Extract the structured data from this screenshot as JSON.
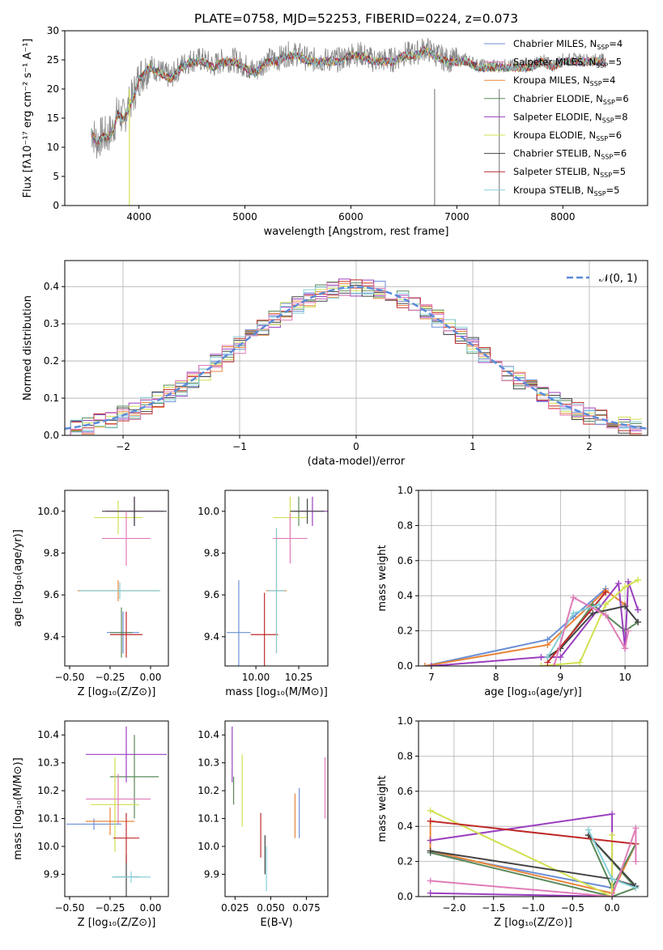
{
  "figure": {
    "title": "PLATE=0758, MJD=52253, FIBERID=0224, z=0.073"
  },
  "colors": [
    "#6a8fd6",
    "#e9853a",
    "#5a8a5a",
    "#9a3fbf",
    "#d2e050",
    "#444444",
    "#c02a2a",
    "#86d0d8",
    "#e07cb8",
    "#888888"
  ],
  "chart_data": [
    {
      "id": "spectrum",
      "type": "line",
      "title": "PLATE=0758, MJD=52253, FIBERID=0224, z=0.073",
      "xlabel": "wavelength [Angstrom, rest frame]",
      "ylabel": "Flux [fλ10⁻¹⁷ erg cm⁻² s⁻¹ A⁻¹]",
      "xlim": [
        3300,
        8800
      ],
      "ylim": [
        0,
        30
      ],
      "xticks": [
        4000,
        5000,
        6000,
        7000,
        8000
      ],
      "yticks": [
        0,
        5,
        10,
        15,
        20,
        25,
        30
      ],
      "grid": false,
      "legend_position": "top-right",
      "legend": [
        {
          "label": "Chabrier MILES, N",
          "sub": "SSP",
          "suffix": "=4",
          "color": "#6a8fd6"
        },
        {
          "label": "Salpeter MILES, N",
          "sub": "SSP",
          "suffix": "=5",
          "color": "#e07cb8"
        },
        {
          "label": "Kroupa MILES, N",
          "sub": "SSP",
          "suffix": "=4",
          "color": "#e9853a"
        },
        {
          "label": "Chabrier ELODIE, N",
          "sub": "SSP",
          "suffix": "=6",
          "color": "#5a8a5a"
        },
        {
          "label": "Salpeter ELODIE, N",
          "sub": "SSP",
          "suffix": "=8",
          "color": "#9a3fbf"
        },
        {
          "label": "Kroupa ELODIE, N",
          "sub": "SSP",
          "suffix": "=6",
          "color": "#d2e050"
        },
        {
          "label": "Chabrier STELIB, N",
          "sub": "SSP",
          "suffix": "=6",
          "color": "#444444"
        },
        {
          "label": "Salpeter STELIB, N",
          "sub": "SSP",
          "suffix": "=5",
          "color": "#c02a2a"
        },
        {
          "label": "Kroupa STELIB, N",
          "sub": "SSP",
          "suffix": "=5",
          "color": "#86d0d8"
        }
      ],
      "data_curve": {
        "name": "",
        "x": [
          3550,
          3600,
          3650,
          3700,
          3750,
          3800,
          3850,
          3900,
          3950,
          4000,
          4050,
          4100,
          4200,
          4300,
          4400,
          4500,
          4600,
          4700,
          4800,
          4900,
          5000,
          5100,
          5200,
          5300,
          5400,
          5500,
          5600,
          5700,
          5800,
          5900,
          6000,
          6100,
          6200,
          6300,
          6400,
          6500,
          6600,
          6700,
          6800,
          6900,
          7000,
          7100,
          7200,
          7300,
          7400,
          7500,
          7600,
          7700,
          7800,
          7900,
          8000,
          8100,
          8200,
          8300,
          8400
        ],
        "y": [
          13,
          11,
          12,
          12,
          13,
          16,
          15,
          17,
          19,
          22,
          23,
          24,
          23,
          22,
          24,
          25,
          25,
          24,
          25,
          25,
          24,
          23,
          25,
          25,
          26,
          26,
          25,
          25,
          25,
          25,
          26,
          26,
          25,
          25,
          25,
          26,
          26,
          27,
          26,
          25,
          25,
          25,
          24,
          24,
          24,
          24,
          24,
          24,
          25,
          24,
          25,
          25,
          25,
          25,
          25
        ]
      }
    },
    {
      "id": "residuals",
      "type": "histogram",
      "xlabel": "(data-model)/error",
      "ylabel": "Normed distribution",
      "xlim": [
        -2.5,
        2.5
      ],
      "ylim": [
        0,
        0.47
      ],
      "xticks": [
        -2,
        -1,
        0,
        1,
        2
      ],
      "yticks": [
        0.0,
        0.1,
        0.2,
        0.3,
        0.4
      ],
      "grid": true,
      "legend_position": "top-right",
      "reference": {
        "label": "𝒩(0, 1)",
        "mean": 0,
        "sigma": 1,
        "color": "#5b8bd9"
      },
      "bin_centers": [
        -2.4,
        -2.3,
        -2.2,
        -2.1,
        -2.0,
        -1.9,
        -1.8,
        -1.7,
        -1.6,
        -1.5,
        -1.4,
        -1.3,
        -1.2,
        -1.1,
        -1.0,
        -0.9,
        -0.8,
        -0.7,
        -0.6,
        -0.5,
        -0.4,
        -0.3,
        -0.2,
        -0.1,
        0.0,
        0.1,
        0.2,
        0.3,
        0.4,
        0.5,
        0.6,
        0.7,
        0.8,
        0.9,
        1.0,
        1.1,
        1.2,
        1.3,
        1.4,
        1.5,
        1.6,
        1.7,
        1.8,
        1.9,
        2.0,
        2.1,
        2.2,
        2.3,
        2.4
      ]
    },
    {
      "id": "age-vs-Z",
      "type": "errorbar",
      "xlabel": "Z [log₁₀(Z/Z⊙)]",
      "ylabel": "age  [log₁₀(age/yr)]",
      "xlim": [
        -0.53,
        0.11
      ],
      "ylim": [
        9.26,
        10.1
      ],
      "xticks": [
        -0.5,
        -0.25,
        0.0
      ],
      "xticklabels": [
        "−0.50",
        "−0.25",
        "0.00"
      ],
      "yticks": [
        9.4,
        9.6,
        9.8,
        10.0
      ],
      "points": [
        {
          "x": -0.17,
          "y": 9.42,
          "xerr": 0.1,
          "yerr": 0.1,
          "color": "#6a8fd6"
        },
        {
          "x": -0.2,
          "y": 9.62,
          "xerr": 0.25,
          "yerr": 0.05,
          "color": "#e9853a"
        },
        {
          "x": -0.18,
          "y": 9.42,
          "xerr": 0.07,
          "yerr": 0.12,
          "color": "#5a8a5a"
        },
        {
          "x": -0.1,
          "y": 10.0,
          "xerr": 0.18,
          "yerr": 0.07,
          "color": "#9a3fbf"
        },
        {
          "x": -0.2,
          "y": 9.97,
          "xerr": 0.15,
          "yerr": 0.08,
          "color": "#d2e050"
        },
        {
          "x": -0.1,
          "y": 10.0,
          "xerr": 0.2,
          "yerr": 0.07,
          "color": "#444444"
        },
        {
          "x": -0.15,
          "y": 9.41,
          "xerr": 0.1,
          "yerr": 0.11,
          "color": "#c02a2a"
        },
        {
          "x": -0.19,
          "y": 9.62,
          "xerr": 0.25,
          "yerr": 0.04,
          "color": "#86d0d8"
        },
        {
          "x": -0.15,
          "y": 9.87,
          "xerr": 0.15,
          "yerr": 0.13,
          "color": "#e07cb8"
        }
      ]
    },
    {
      "id": "age-vs-mass",
      "type": "errorbar",
      "xlabel": "mass [log₁₀(M/M⊙)]",
      "xlim": [
        9.82,
        10.42
      ],
      "ylim": [
        9.26,
        10.1
      ],
      "xticks": [
        10.0,
        10.25
      ],
      "xticklabels": [
        "10.00",
        "10.25"
      ],
      "yticks": [
        9.4,
        9.6,
        9.8,
        10.0
      ],
      "points": [
        {
          "x": 9.9,
          "y": 9.42,
          "xerr": 0.07,
          "yerr": 0.25,
          "color": "#6a8fd6"
        },
        {
          "x": 10.12,
          "y": 9.62,
          "xerr": 0.06,
          "yerr": 0.3,
          "color": "#e9853a"
        },
        {
          "x": 10.25,
          "y": 10.0,
          "xerr": 0.05,
          "yerr": 0.07,
          "color": "#5a8a5a"
        },
        {
          "x": 10.33,
          "y": 10.0,
          "xerr": 0.1,
          "yerr": 0.07,
          "color": "#9a3fbf"
        },
        {
          "x": 10.2,
          "y": 9.97,
          "xerr": 0.1,
          "yerr": 0.1,
          "color": "#d2e050"
        },
        {
          "x": 10.3,
          "y": 10.0,
          "xerr": 0.1,
          "yerr": 0.06,
          "color": "#444444"
        },
        {
          "x": 10.05,
          "y": 9.41,
          "xerr": 0.08,
          "yerr": 0.2,
          "color": "#c02a2a"
        },
        {
          "x": 10.12,
          "y": 9.62,
          "xerr": 0.05,
          "yerr": 0.3,
          "color": "#86d0d8"
        },
        {
          "x": 10.2,
          "y": 9.87,
          "xerr": 0.1,
          "yerr": 0.12,
          "color": "#e07cb8"
        }
      ]
    },
    {
      "id": "weight-vs-age",
      "type": "line",
      "xlabel": "age  [log₁₀(age/yr)]",
      "ylabel": "mass weight",
      "xlim": [
        6.8,
        10.35
      ],
      "ylim": [
        0,
        1
      ],
      "xticks": [
        7,
        8,
        9,
        10
      ],
      "yticks": [
        0.0,
        0.2,
        0.4,
        0.6,
        0.8,
        1.0
      ],
      "grid": true,
      "series": [
        {
          "color": "#6a8fd6",
          "x": [
            6.9,
            8.8,
            9.2,
            9.7
          ],
          "y": [
            0.0,
            0.15,
            0.28,
            0.44
          ]
        },
        {
          "color": "#e9853a",
          "x": [
            6.9,
            8.8,
            9.7,
            10.0
          ],
          "y": [
            0.0,
            0.12,
            0.43,
            0.35
          ]
        },
        {
          "color": "#5a8a5a",
          "x": [
            8.8,
            9.0,
            9.5,
            10.0,
            10.2
          ],
          "y": [
            0.05,
            0.1,
            0.35,
            0.2,
            0.25
          ]
        },
        {
          "color": "#9a3fbf",
          "x": [
            7.0,
            8.7,
            9.0,
            9.9,
            10.0,
            10.05,
            10.2
          ],
          "y": [
            0.0,
            0.05,
            0.05,
            0.47,
            0.1,
            0.48,
            0.32
          ]
        },
        {
          "color": "#d2e050",
          "x": [
            8.7,
            9.3,
            9.7,
            10.0,
            10.2
          ],
          "y": [
            0.0,
            0.02,
            0.35,
            0.45,
            0.49
          ]
        },
        {
          "color": "#444444",
          "x": [
            8.8,
            9.0,
            9.5,
            10.0,
            10.2
          ],
          "y": [
            0.05,
            0.1,
            0.3,
            0.34,
            0.25
          ]
        },
        {
          "color": "#c02a2a",
          "x": [
            8.8,
            9.7
          ],
          "y": [
            0.02,
            0.42
          ]
        },
        {
          "color": "#86d0d8",
          "x": [
            8.8,
            9.2,
            9.6
          ],
          "y": [
            0.05,
            0.3,
            0.35
          ]
        },
        {
          "color": "#e07cb8",
          "x": [
            8.9,
            9.2,
            9.7,
            10.0,
            10.05
          ],
          "y": [
            0.0,
            0.39,
            0.29,
            0.1,
            0.2
          ]
        }
      ]
    },
    {
      "id": "mass-vs-Z",
      "type": "errorbar",
      "xlabel": "Z [log₁₀(Z/Z⊙)]",
      "ylabel": "mass [log₁₀(M/M⊙)]",
      "xlim": [
        -0.53,
        0.11
      ],
      "ylim": [
        9.82,
        10.45
      ],
      "xticks": [
        -0.5,
        -0.25,
        0.0
      ],
      "xticklabels": [
        "−0.50",
        "−0.25",
        "0.00"
      ],
      "yticks": [
        9.9,
        10.0,
        10.1,
        10.2,
        10.3,
        10.4
      ],
      "points": [
        {
          "x": -0.35,
          "y": 10.08,
          "xerr": 0.17,
          "yerr": 0.02,
          "color": "#6a8fd6"
        },
        {
          "x": -0.25,
          "y": 10.09,
          "xerr": 0.15,
          "yerr": 0.05,
          "color": "#e9853a"
        },
        {
          "x": -0.1,
          "y": 10.25,
          "xerr": 0.15,
          "yerr": 0.15,
          "color": "#5a8a5a"
        },
        {
          "x": -0.15,
          "y": 10.33,
          "xerr": 0.25,
          "yerr": 0.1,
          "color": "#9a3fbf"
        },
        {
          "x": -0.22,
          "y": 10.15,
          "xerr": 0.15,
          "yerr": 0.17,
          "color": "#d2e050"
        },
        {
          "x": -0.15,
          "y": 9.89,
          "xerr": 0.08,
          "yerr": 0.08,
          "color": "#444444"
        },
        {
          "x": -0.15,
          "y": 10.03,
          "xerr": 0.08,
          "yerr": 0.09,
          "color": "#c02a2a"
        },
        {
          "x": -0.12,
          "y": 9.89,
          "xerr": 0.12,
          "yerr": 0.02,
          "color": "#86d0d8"
        },
        {
          "x": -0.2,
          "y": 10.17,
          "xerr": 0.2,
          "yerr": 0.09,
          "color": "#e07cb8"
        }
      ]
    },
    {
      "id": "mass-vs-EBV",
      "type": "errorbar",
      "xlabel": "E(B-V)",
      "xlim": [
        0.018,
        0.09
      ],
      "ylim": [
        9.82,
        10.45
      ],
      "xticks": [
        0.025,
        0.05,
        0.075
      ],
      "xticklabels": [
        "0.025",
        "0.050",
        "0.075"
      ],
      "yticks": [
        9.9,
        10.0,
        10.1,
        10.2,
        10.3,
        10.4
      ],
      "points": [
        {
          "x": 0.07,
          "y": 10.12,
          "xerr": 0,
          "yerr": 0.09,
          "color": "#6a8fd6"
        },
        {
          "x": 0.067,
          "y": 10.11,
          "xerr": 0,
          "yerr": 0.08,
          "color": "#e9853a"
        },
        {
          "x": 0.024,
          "y": 10.2,
          "xerr": 0,
          "yerr": 0.05,
          "color": "#5a8a5a"
        },
        {
          "x": 0.023,
          "y": 10.33,
          "xerr": 0,
          "yerr": 0.1,
          "color": "#9a3fbf"
        },
        {
          "x": 0.03,
          "y": 10.2,
          "xerr": 0,
          "yerr": 0.13,
          "color": "#d2e050"
        },
        {
          "x": 0.046,
          "y": 9.97,
          "xerr": 0,
          "yerr": 0.07,
          "color": "#444444"
        },
        {
          "x": 0.043,
          "y": 10.04,
          "xerr": 0,
          "yerr": 0.08,
          "color": "#c02a2a"
        },
        {
          "x": 0.047,
          "y": 9.92,
          "xerr": 0,
          "yerr": 0.08,
          "color": "#86d0d8"
        },
        {
          "x": 0.088,
          "y": 10.21,
          "xerr": 0,
          "yerr": 0.11,
          "color": "#e07cb8"
        }
      ]
    },
    {
      "id": "weight-vs-Z",
      "type": "line",
      "xlabel": "Z [log₁₀(Z/Z⊙)]",
      "ylabel": "mass weight",
      "xlim": [
        -2.45,
        0.45
      ],
      "ylim": [
        0,
        1
      ],
      "xticks": [
        -2.0,
        -1.5,
        -1.0,
        -0.5,
        0.0
      ],
      "xticklabels": [
        "−2.0",
        "−1.5",
        "−1.0",
        "−0.5",
        "0.0"
      ],
      "yticks": [
        0.0,
        0.2,
        0.4,
        0.6,
        0.8,
        1.0
      ],
      "grid": true,
      "series": [
        {
          "color": "#6a8fd6",
          "x": [
            -2.3,
            0.0,
            0.3
          ],
          "y": [
            0.25,
            0.05,
            0.3
          ]
        },
        {
          "color": "#e9853a",
          "x": [
            -2.3,
            -2.3,
            0.0,
            0.3
          ],
          "y": [
            0.43,
            0.26,
            0.02,
            0.3
          ]
        },
        {
          "color": "#5a8a5a",
          "x": [
            -2.3,
            0.0,
            0.3,
            -0.3,
            0.0,
            0.3
          ],
          "y": [
            0.25,
            0.0,
            0.05,
            0.35,
            0.05,
            0.3
          ]
        },
        {
          "color": "#9a3fbf",
          "x": [
            -2.3,
            0.0,
            0.0,
            -2.3
          ],
          "y": [
            0.02,
            0.0,
            0.47,
            0.32
          ]
        },
        {
          "color": "#d2e050",
          "x": [
            -2.3,
            0.0,
            0.0
          ],
          "y": [
            0.49,
            0.0,
            0.35
          ]
        },
        {
          "color": "#444444",
          "x": [
            -2.3,
            0.0,
            0.3,
            -0.3
          ],
          "y": [
            0.26,
            0.1,
            0.06,
            0.35
          ]
        },
        {
          "color": "#c02a2a",
          "x": [
            -2.3,
            0.3
          ],
          "y": [
            0.43,
            0.3
          ]
        },
        {
          "color": "#86d0d8",
          "x": [
            -0.3,
            0.0,
            0.3
          ],
          "y": [
            0.38,
            0.1,
            0.05
          ]
        },
        {
          "color": "#e07cb8",
          "x": [
            -2.3,
            0.0,
            0.3,
            0.3
          ],
          "y": [
            0.09,
            0.0,
            0.39,
            0.2
          ]
        }
      ]
    }
  ]
}
